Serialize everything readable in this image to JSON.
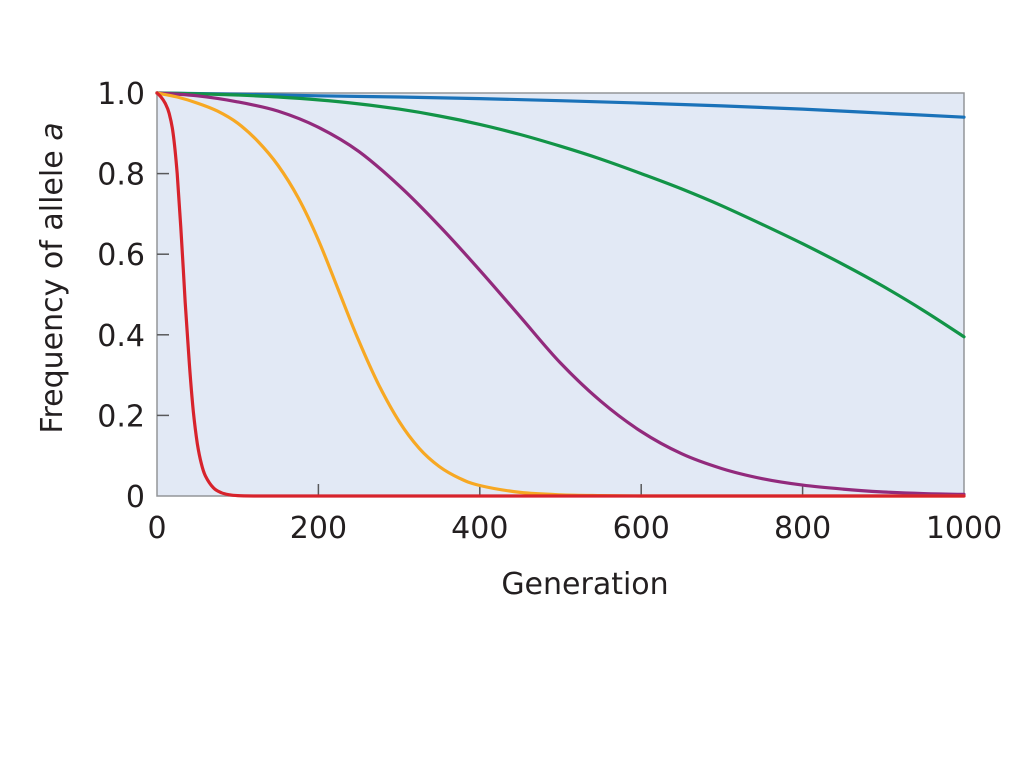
{
  "chart_data": {
    "type": "line",
    "title": "",
    "xlabel": "Generation",
    "ylabel": "Frequency of allele ",
    "ylabel_italic": "a",
    "xlim": [
      0,
      1000
    ],
    "ylim": [
      0,
      1.0
    ],
    "x_ticks": [
      0,
      200,
      400,
      600,
      800,
      1000
    ],
    "x_tick_labels": [
      "0",
      "200",
      "400",
      "600",
      "800",
      "1000"
    ],
    "y_ticks": [
      0,
      0.2,
      0.4,
      0.6,
      0.8,
      1.0
    ],
    "y_tick_labels": [
      "0",
      "0.2",
      "0.4",
      "0.6",
      "0.8",
      "1.0"
    ],
    "plot_background": "#e2e9f5",
    "grid": false,
    "legend": "none",
    "series": [
      {
        "color": "#1a72b9",
        "x": [
          0,
          100,
          200,
          300,
          400,
          500,
          600,
          700,
          800,
          900,
          1000
        ],
        "y": [
          1.0,
          0.997,
          0.993,
          0.99,
          0.986,
          0.981,
          0.975,
          0.968,
          0.96,
          0.95,
          0.94
        ]
      },
      {
        "color": "#129447",
        "x": [
          0,
          50,
          100,
          150,
          200,
          250,
          300,
          350,
          400,
          450,
          500,
          550,
          600,
          650,
          700,
          750,
          800,
          850,
          900,
          950,
          1000
        ],
        "y": [
          1.0,
          0.998,
          0.995,
          0.99,
          0.983,
          0.973,
          0.96,
          0.943,
          0.922,
          0.897,
          0.868,
          0.836,
          0.8,
          0.762,
          0.72,
          0.674,
          0.626,
          0.575,
          0.52,
          0.46,
          0.395
        ]
      },
      {
        "color": "#922a7c",
        "x": [
          0,
          50,
          100,
          150,
          200,
          250,
          300,
          350,
          400,
          450,
          500,
          550,
          600,
          650,
          700,
          750,
          800,
          850,
          900,
          950,
          1000
        ],
        "y": [
          1.0,
          0.993,
          0.978,
          0.955,
          0.915,
          0.855,
          0.77,
          0.67,
          0.56,
          0.445,
          0.33,
          0.235,
          0.16,
          0.105,
          0.068,
          0.043,
          0.027,
          0.017,
          0.01,
          0.006,
          0.004
        ]
      },
      {
        "color": "#f7a823",
        "x": [
          0,
          25,
          50,
          75,
          100,
          125,
          150,
          175,
          200,
          225,
          250,
          275,
          300,
          325,
          350,
          375,
          400,
          450,
          500,
          550,
          600,
          700,
          800,
          1000
        ],
        "y": [
          1.0,
          0.99,
          0.975,
          0.955,
          0.925,
          0.88,
          0.82,
          0.74,
          0.635,
          0.51,
          0.385,
          0.275,
          0.185,
          0.118,
          0.073,
          0.044,
          0.026,
          0.009,
          0.003,
          0.001,
          0.0,
          0.0,
          0.0,
          0.0
        ]
      },
      {
        "color": "#d7232c",
        "x": [
          0,
          5,
          10,
          15,
          20,
          25,
          30,
          35,
          40,
          45,
          50,
          55,
          60,
          70,
          80,
          90,
          100,
          120,
          150,
          200,
          400,
          600,
          800,
          1000
        ],
        "y": [
          1.0,
          0.99,
          0.975,
          0.95,
          0.9,
          0.8,
          0.65,
          0.48,
          0.33,
          0.21,
          0.13,
          0.08,
          0.05,
          0.02,
          0.008,
          0.003,
          0.001,
          0.0,
          0.0,
          0.0,
          0.0,
          0.0,
          0.0,
          0.0
        ]
      }
    ]
  }
}
